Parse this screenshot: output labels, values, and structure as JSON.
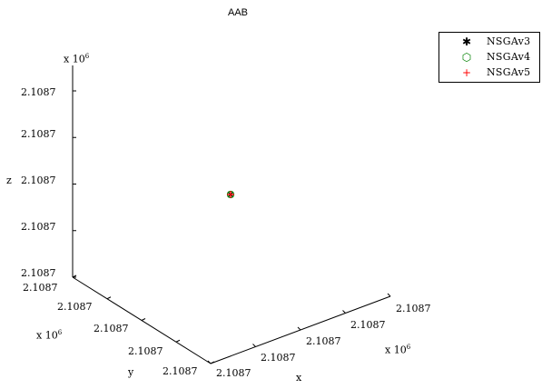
{
  "chart_data": {
    "type": "scatter",
    "title": "AAB",
    "xlabel": "x",
    "ylabel": "y",
    "zlabel": "z",
    "x_multiplier": "x 10",
    "y_multiplier": "x 10",
    "z_multiplier": "x 10",
    "multiplier_exponent": "6",
    "x_ticks": [
      "2.1087",
      "2.1087",
      "2.1087",
      "2.1087",
      "2.1087"
    ],
    "y_ticks": [
      "2.1087",
      "2.1087",
      "2.1087",
      "2.1087",
      "2.1087"
    ],
    "z_ticks": [
      "2.1087",
      "2.1087",
      "2.1087",
      "2.1087",
      "2.1087"
    ],
    "grid": false,
    "legend_position": "top-right",
    "series": [
      {
        "name": "NSGAv3",
        "marker": "*",
        "color": "#000000",
        "points": [
          {
            "x": 2.1087,
            "y": 2.1087,
            "z": 2.1087
          }
        ]
      },
      {
        "name": "NSGAv4",
        "marker": "o",
        "color": "#008000",
        "points": [
          {
            "x": 2.1087,
            "y": 2.1087,
            "z": 2.1087
          }
        ]
      },
      {
        "name": "NSGAv5",
        "marker": "+",
        "color": "#ff0000",
        "points": [
          {
            "x": 2.1087,
            "y": 2.1087,
            "z": 2.1087
          }
        ]
      }
    ]
  }
}
